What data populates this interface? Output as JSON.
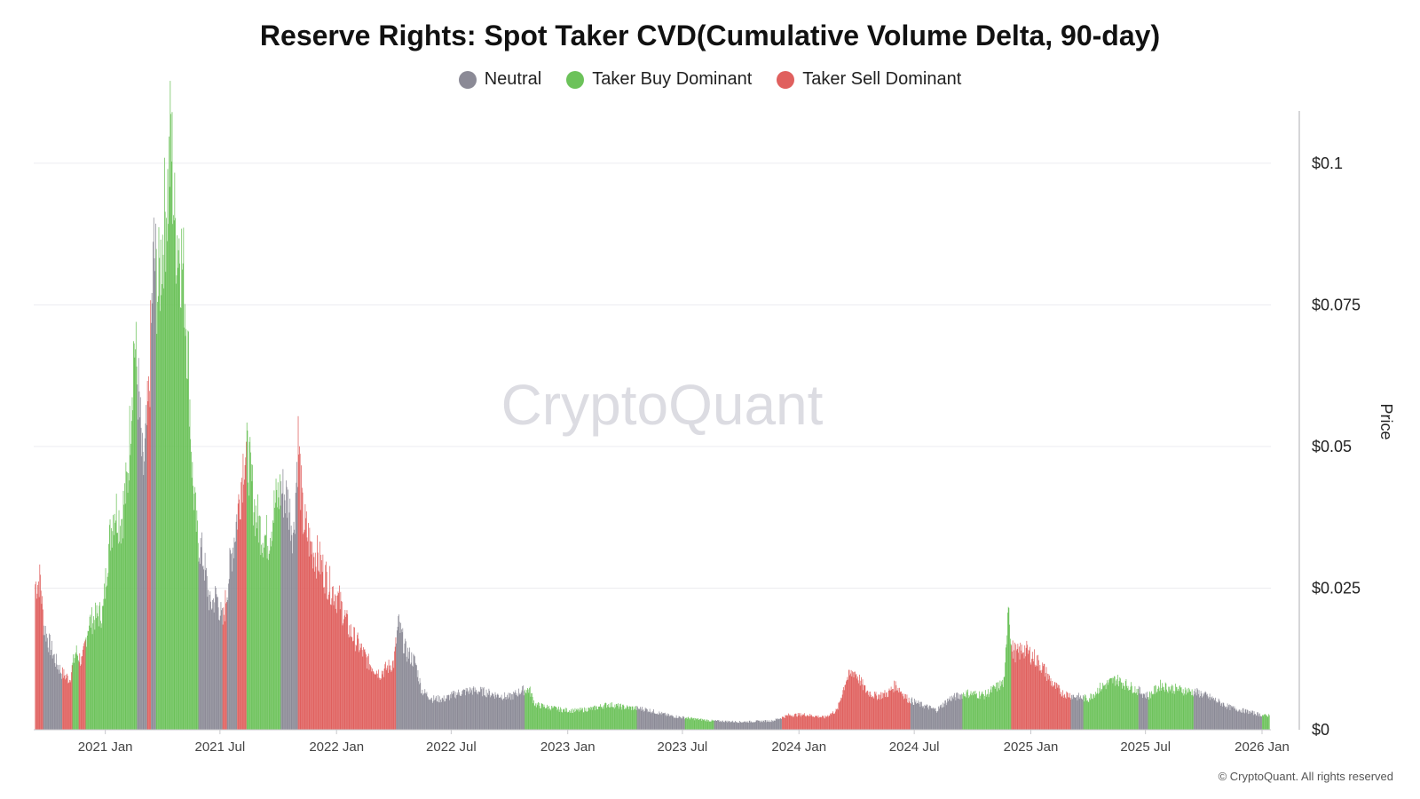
{
  "title": "Reserve Rights: Spot Taker CVD(Cumulative Volume Delta, 90-day)",
  "legend": [
    {
      "label": "Neutral",
      "color": "#8b8a96"
    },
    {
      "label": "Taker Buy Dominant",
      "color": "#6cc25a"
    },
    {
      "label": "Taker Sell Dominant",
      "color": "#e0605e"
    }
  ],
  "watermark": "CryptoQuant",
  "copyright": "© CryptoQuant. All rights reserved",
  "chart_data": {
    "type": "bar",
    "ylabel": "Price",
    "ylim": [
      0,
      0.11
    ],
    "y_ticks": [
      {
        "value": 0,
        "label": "$0"
      },
      {
        "value": 0.025,
        "label": "$0.025"
      },
      {
        "value": 0.05,
        "label": "$0.05"
      },
      {
        "value": 0.075,
        "label": "$0.075"
      },
      {
        "value": 0.1,
        "label": "$0.1"
      }
    ],
    "x_range": [
      "2020-09-10",
      "2026-01-15"
    ],
    "x_ticks": [
      {
        "date": "2021-01-01",
        "label": "2021 Jan"
      },
      {
        "date": "2021-07-01",
        "label": "2021 Jul"
      },
      {
        "date": "2022-01-01",
        "label": "2022 Jan"
      },
      {
        "date": "2022-07-01",
        "label": "2022 Jul"
      },
      {
        "date": "2023-01-01",
        "label": "2023 Jan"
      },
      {
        "date": "2023-07-01",
        "label": "2023 Jul"
      },
      {
        "date": "2024-01-01",
        "label": "2024 Jan"
      },
      {
        "date": "2024-07-01",
        "label": "2024 Jul"
      },
      {
        "date": "2025-01-01",
        "label": "2025 Jan"
      },
      {
        "date": "2025-07-01",
        "label": "2025 Jul"
      },
      {
        "date": "2026-01-01",
        "label": "2026 Jan"
      }
    ],
    "price_points": [
      [
        "2020-09-15",
        0.026
      ],
      [
        "2020-09-20",
        0.027
      ],
      [
        "2020-09-25",
        0.019
      ],
      [
        "2020-10-02",
        0.016
      ],
      [
        "2020-10-15",
        0.012
      ],
      [
        "2020-10-25",
        0.01
      ],
      [
        "2020-11-05",
        0.009
      ],
      [
        "2020-11-15",
        0.014
      ],
      [
        "2020-11-25",
        0.012
      ],
      [
        "2020-12-05",
        0.019
      ],
      [
        "2020-12-15",
        0.02
      ],
      [
        "2020-12-28",
        0.021
      ],
      [
        "2021-01-05",
        0.032
      ],
      [
        "2021-01-15",
        0.04
      ],
      [
        "2021-01-25",
        0.037
      ],
      [
        "2021-02-05",
        0.045
      ],
      [
        "2021-02-15",
        0.07
      ],
      [
        "2021-02-22",
        0.06
      ],
      [
        "2021-03-01",
        0.045
      ],
      [
        "2021-03-10",
        0.058
      ],
      [
        "2021-03-18",
        0.085
      ],
      [
        "2021-03-25",
        0.078
      ],
      [
        "2021-04-02",
        0.089
      ],
      [
        "2021-04-10",
        0.097
      ],
      [
        "2021-04-14",
        0.107
      ],
      [
        "2021-04-20",
        0.09
      ],
      [
        "2021-04-28",
        0.087
      ],
      [
        "2021-05-05",
        0.08
      ],
      [
        "2021-05-12",
        0.065
      ],
      [
        "2021-05-18",
        0.045
      ],
      [
        "2021-05-25",
        0.035
      ],
      [
        "2021-06-05",
        0.03
      ],
      [
        "2021-06-15",
        0.022
      ],
      [
        "2021-06-25",
        0.024
      ],
      [
        "2021-07-05",
        0.019
      ],
      [
        "2021-07-15",
        0.028
      ],
      [
        "2021-07-25",
        0.036
      ],
      [
        "2021-08-01",
        0.042
      ],
      [
        "2021-08-08",
        0.05
      ],
      [
        "2021-08-15",
        0.048
      ],
      [
        "2021-08-25",
        0.039
      ],
      [
        "2021-09-05",
        0.035
      ],
      [
        "2021-09-15",
        0.034
      ],
      [
        "2021-09-25",
        0.04
      ],
      [
        "2021-10-05",
        0.043
      ],
      [
        "2021-10-15",
        0.041
      ],
      [
        "2021-10-25",
        0.035
      ],
      [
        "2021-11-01",
        0.052
      ],
      [
        "2021-11-08",
        0.038
      ],
      [
        "2021-11-20",
        0.033
      ],
      [
        "2021-12-05",
        0.03
      ],
      [
        "2021-12-20",
        0.026
      ],
      [
        "2022-01-05",
        0.023
      ],
      [
        "2022-01-20",
        0.018
      ],
      [
        "2022-02-05",
        0.015
      ],
      [
        "2022-02-20",
        0.012
      ],
      [
        "2022-03-10",
        0.01
      ],
      [
        "2022-04-01",
        0.012
      ],
      [
        "2022-04-08",
        0.019
      ],
      [
        "2022-04-20",
        0.014
      ],
      [
        "2022-05-05",
        0.012
      ],
      [
        "2022-05-15",
        0.007
      ],
      [
        "2022-06-01",
        0.0055
      ],
      [
        "2022-06-20",
        0.0055
      ],
      [
        "2022-07-10",
        0.0065
      ],
      [
        "2022-08-01",
        0.007
      ],
      [
        "2022-08-20",
        0.0068
      ],
      [
        "2022-09-10",
        0.0062
      ],
      [
        "2022-10-01",
        0.0058
      ],
      [
        "2022-10-20",
        0.007
      ],
      [
        "2022-11-01",
        0.0072
      ],
      [
        "2022-11-10",
        0.0045
      ],
      [
        "2022-12-01",
        0.004
      ],
      [
        "2022-12-25",
        0.0035
      ],
      [
        "2023-01-15",
        0.0034
      ],
      [
        "2023-02-10",
        0.0038
      ],
      [
        "2023-03-05",
        0.0045
      ],
      [
        "2023-04-01",
        0.004
      ],
      [
        "2023-05-01",
        0.0037
      ],
      [
        "2023-06-10",
        0.0025
      ],
      [
        "2023-07-15",
        0.002
      ],
      [
        "2023-08-15",
        0.0016
      ],
      [
        "2023-10-01",
        0.0014
      ],
      [
        "2023-11-20",
        0.0016
      ],
      [
        "2023-12-15",
        0.0026
      ],
      [
        "2024-01-10",
        0.0027
      ],
      [
        "2024-02-10",
        0.0022
      ],
      [
        "2024-03-01",
        0.0035
      ],
      [
        "2024-03-15",
        0.009
      ],
      [
        "2024-03-28",
        0.0105
      ],
      [
        "2024-04-15",
        0.007
      ],
      [
        "2024-05-01",
        0.006
      ],
      [
        "2024-05-20",
        0.0065
      ],
      [
        "2024-06-01",
        0.008
      ],
      [
        "2024-06-20",
        0.0055
      ],
      [
        "2024-07-10",
        0.0045
      ],
      [
        "2024-08-05",
        0.0035
      ],
      [
        "2024-08-25",
        0.0055
      ],
      [
        "2024-09-20",
        0.0065
      ],
      [
        "2024-10-20",
        0.0062
      ],
      [
        "2024-11-20",
        0.0085
      ],
      [
        "2024-11-26",
        0.024
      ],
      [
        "2024-12-01",
        0.0145
      ],
      [
        "2024-12-10",
        0.0135
      ],
      [
        "2024-12-20",
        0.0145
      ],
      [
        "2025-01-05",
        0.013
      ],
      [
        "2025-01-20",
        0.011
      ],
      [
        "2025-02-05",
        0.008
      ],
      [
        "2025-02-20",
        0.0065
      ],
      [
        "2025-03-10",
        0.006
      ],
      [
        "2025-04-01",
        0.0055
      ],
      [
        "2025-04-20",
        0.0075
      ],
      [
        "2025-05-15",
        0.009
      ],
      [
        "2025-06-10",
        0.0075
      ],
      [
        "2025-07-05",
        0.006
      ],
      [
        "2025-07-25",
        0.008
      ],
      [
        "2025-08-05",
        0.0075
      ],
      [
        "2025-09-01",
        0.007
      ],
      [
        "2025-09-25",
        0.0065
      ],
      [
        "2025-10-15",
        0.0055
      ],
      [
        "2025-11-10",
        0.004
      ],
      [
        "2025-12-10",
        0.0032
      ],
      [
        "2026-01-05",
        0.0025
      ],
      [
        "2026-01-12",
        0.0026
      ]
    ],
    "regimes": [
      {
        "start": "2020-09-10",
        "end": "2020-09-25",
        "state": "Taker Sell Dominant"
      },
      {
        "start": "2020-09-25",
        "end": "2020-10-25",
        "state": "Neutral"
      },
      {
        "start": "2020-10-25",
        "end": "2020-11-10",
        "state": "Taker Sell Dominant"
      },
      {
        "start": "2020-11-10",
        "end": "2020-11-20",
        "state": "Taker Buy Dominant"
      },
      {
        "start": "2020-11-20",
        "end": "2020-12-01",
        "state": "Taker Sell Dominant"
      },
      {
        "start": "2020-12-01",
        "end": "2021-02-20",
        "state": "Taker Buy Dominant"
      },
      {
        "start": "2021-02-20",
        "end": "2021-03-08",
        "state": "Neutral"
      },
      {
        "start": "2021-03-08",
        "end": "2021-03-14",
        "state": "Taker Sell Dominant"
      },
      {
        "start": "2021-03-14",
        "end": "2021-03-22",
        "state": "Neutral"
      },
      {
        "start": "2021-03-22",
        "end": "2021-05-28",
        "state": "Taker Buy Dominant"
      },
      {
        "start": "2021-05-28",
        "end": "2021-07-05",
        "state": "Neutral"
      },
      {
        "start": "2021-07-05",
        "end": "2021-07-12",
        "state": "Taker Sell Dominant"
      },
      {
        "start": "2021-07-12",
        "end": "2021-07-28",
        "state": "Neutral"
      },
      {
        "start": "2021-07-28",
        "end": "2021-08-12",
        "state": "Taker Sell Dominant"
      },
      {
        "start": "2021-08-12",
        "end": "2021-10-05",
        "state": "Taker Buy Dominant"
      },
      {
        "start": "2021-10-05",
        "end": "2021-11-01",
        "state": "Neutral"
      },
      {
        "start": "2021-11-01",
        "end": "2022-04-05",
        "state": "Taker Sell Dominant"
      },
      {
        "start": "2022-04-05",
        "end": "2022-10-25",
        "state": "Neutral"
      },
      {
        "start": "2022-10-25",
        "end": "2023-04-20",
        "state": "Taker Buy Dominant"
      },
      {
        "start": "2023-04-20",
        "end": "2023-07-05",
        "state": "Neutral"
      },
      {
        "start": "2023-07-05",
        "end": "2023-08-20",
        "state": "Taker Buy Dominant"
      },
      {
        "start": "2023-08-20",
        "end": "2023-12-05",
        "state": "Neutral"
      },
      {
        "start": "2023-12-05",
        "end": "2024-06-25",
        "state": "Taker Sell Dominant"
      },
      {
        "start": "2024-06-25",
        "end": "2024-09-15",
        "state": "Neutral"
      },
      {
        "start": "2024-09-15",
        "end": "2024-12-01",
        "state": "Taker Buy Dominant"
      },
      {
        "start": "2024-12-01",
        "end": "2025-03-05",
        "state": "Taker Sell Dominant"
      },
      {
        "start": "2025-03-05",
        "end": "2025-03-25",
        "state": "Neutral"
      },
      {
        "start": "2025-03-25",
        "end": "2025-06-20",
        "state": "Taker Buy Dominant"
      },
      {
        "start": "2025-06-20",
        "end": "2025-07-05",
        "state": "Neutral"
      },
      {
        "start": "2025-07-05",
        "end": "2025-08-01",
        "state": "Taker Buy Dominant"
      },
      {
        "start": "2025-08-01",
        "end": "2025-09-15",
        "state": "Taker Buy Dominant"
      },
      {
        "start": "2025-09-15",
        "end": "2026-01-01",
        "state": "Neutral"
      },
      {
        "start": "2026-01-01",
        "end": "2026-01-15",
        "state": "Taker Buy Dominant"
      }
    ]
  }
}
